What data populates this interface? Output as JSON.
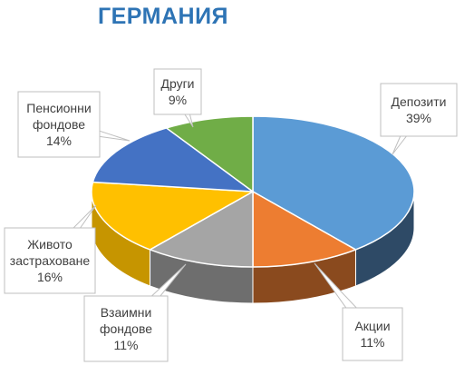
{
  "chart_data": {
    "type": "pie",
    "title": "ГЕРМАНИЯ",
    "title_color": "#2e74b5",
    "slices": [
      {
        "name": "Депозити",
        "percent_label": "39%",
        "value": 39,
        "color": "#5b9bd5",
        "side_color": "#2e4a66"
      },
      {
        "name": "Акции",
        "percent_label": "11%",
        "value": 11,
        "color": "#ed7d31",
        "side_color": "#8a4a1e"
      },
      {
        "name": "Взаимни фондове",
        "percent_label": "11%",
        "value": 11,
        "color": "#a5a5a5",
        "side_color": "#6e6e6e"
      },
      {
        "name": "Живото застраховане",
        "percent_label": "16%",
        "value": 16,
        "color": "#ffc000",
        "side_color": "#c69500"
      },
      {
        "name": "Пенсионни фондове",
        "percent_label": "14%",
        "value": 14,
        "color": "#4472c4",
        "side_color": "#2f4f88"
      },
      {
        "name": "Други",
        "percent_label": "9%",
        "value": 9,
        "color": "#70ad47",
        "side_color": "#4b7a2f"
      }
    ],
    "labels": [
      {
        "lines": [
          "Депозити",
          "39%"
        ]
      },
      {
        "lines": [
          "Акции",
          "11%"
        ]
      },
      {
        "lines": [
          "Взаимни",
          "фондове",
          "11%"
        ]
      },
      {
        "lines": [
          "Живото",
          "застраховане",
          "16%"
        ]
      },
      {
        "lines": [
          "Пенсионни",
          "фондове",
          "14%"
        ]
      },
      {
        "lines": [
          "Други",
          "9%"
        ]
      }
    ]
  }
}
